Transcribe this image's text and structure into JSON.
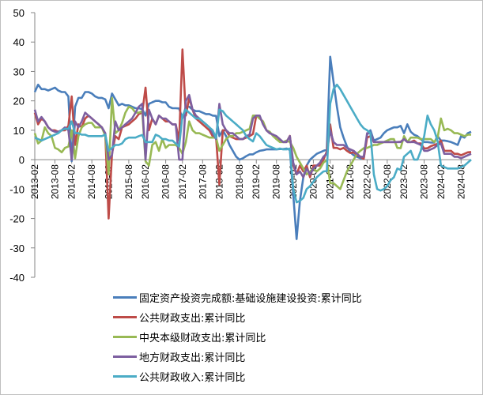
{
  "chart_data": {
    "type": "line",
    "title": "",
    "xlabel": "",
    "ylabel": "",
    "ylim": [
      -40,
      50
    ],
    "yticks": [
      50,
      40,
      30,
      20,
      10,
      0,
      -10,
      -20,
      -30,
      -40
    ],
    "grid": false,
    "legend_position": "bottom",
    "x_tick_labels": [
      "2013-02",
      "2013-08",
      "2014-02",
      "2014-08",
      "2015-02",
      "2015-08",
      "2016-02",
      "2016-08",
      "2017-02",
      "2017-08",
      "2018-02",
      "2018-08",
      "2019-02",
      "2019-08",
      "2020-02",
      "2020-08",
      "2021-02",
      "2021-08",
      "2022-02",
      "2022-08",
      "2023-02",
      "2023-08",
      "2024-02",
      "2024-08"
    ],
    "x": [
      "2013-02",
      "2013-03",
      "2013-04",
      "2013-05",
      "2013-06",
      "2013-07",
      "2013-08",
      "2013-09",
      "2013-10",
      "2013-11",
      "2013-12",
      "2014-02",
      "2014-03",
      "2014-04",
      "2014-05",
      "2014-06",
      "2014-07",
      "2014-08",
      "2014-09",
      "2014-10",
      "2014-11",
      "2014-12",
      "2015-02",
      "2015-03",
      "2015-04",
      "2015-05",
      "2015-06",
      "2015-07",
      "2015-08",
      "2015-09",
      "2015-10",
      "2015-11",
      "2015-12",
      "2016-02",
      "2016-03",
      "2016-04",
      "2016-05",
      "2016-06",
      "2016-07",
      "2016-08",
      "2016-09",
      "2016-10",
      "2016-11",
      "2016-12",
      "2017-02",
      "2017-03",
      "2017-04",
      "2017-05",
      "2017-06",
      "2017-07",
      "2017-08",
      "2017-09",
      "2017-10",
      "2017-11",
      "2017-12",
      "2018-02",
      "2018-03",
      "2018-04",
      "2018-05",
      "2018-06",
      "2018-07",
      "2018-08",
      "2018-09",
      "2018-10",
      "2018-11",
      "2018-12",
      "2019-02",
      "2019-03",
      "2019-04",
      "2019-05",
      "2019-06",
      "2019-07",
      "2019-08",
      "2019-09",
      "2019-10",
      "2019-11",
      "2019-12",
      "2020-02",
      "2020-03",
      "2020-04",
      "2020-05",
      "2020-06",
      "2020-07",
      "2020-08",
      "2020-09",
      "2020-10",
      "2020-11",
      "2020-12",
      "2021-02",
      "2021-03",
      "2021-04",
      "2021-05",
      "2021-06",
      "2021-07",
      "2021-08",
      "2021-09",
      "2021-10",
      "2021-11",
      "2021-12",
      "2022-02",
      "2022-03",
      "2022-04",
      "2022-05",
      "2022-06",
      "2022-07",
      "2022-08",
      "2022-09",
      "2022-10",
      "2022-11",
      "2022-12",
      "2023-02",
      "2023-03",
      "2023-04",
      "2023-05",
      "2023-06",
      "2023-07",
      "2023-08",
      "2023-09",
      "2023-10",
      "2023-11",
      "2023-12",
      "2024-02",
      "2024-03",
      "2024-04",
      "2024-05",
      "2024-06",
      "2024-07",
      "2024-08",
      "2024-09",
      "2024-10",
      "2024-11"
    ],
    "series": [
      {
        "name": "固定资产投资完成额:基础设施建设投资:累计同比",
        "color": "#4a7ebb",
        "values": [
          23,
          25.5,
          24,
          24,
          23.5,
          24,
          24.5,
          23.5,
          23,
          23,
          21.5,
          -0.5,
          18,
          21,
          21,
          23,
          23,
          22.5,
          21.5,
          21,
          21,
          20.5,
          17.5,
          22.5,
          20.5,
          18.5,
          19,
          18.5,
          18.5,
          18,
          17.5,
          17.5,
          17.2,
          15,
          19,
          19.5,
          20,
          20,
          19.5,
          19.5,
          18,
          17.5,
          17.5,
          17.4,
          14,
          18,
          18,
          17,
          16.5,
          16.5,
          16,
          15.5,
          15.5,
          15,
          14.9,
          8,
          10,
          8,
          5,
          3,
          1,
          0,
          0.5,
          1.2,
          1.8,
          1.8,
          2.5,
          3,
          3.2,
          3.5,
          3.5,
          3.5,
          3.5,
          3.6,
          3.6,
          3.8,
          3.3,
          -12,
          -27,
          -14,
          -6,
          -2,
          0,
          1,
          2,
          2.5,
          3,
          3.4,
          35,
          26.5,
          18,
          11,
          7.5,
          4.5,
          2.5,
          1.5,
          1,
          0.5,
          0.4,
          8.5,
          10,
          6.5,
          7,
          7.5,
          9,
          10,
          10.5,
          11,
          11,
          11.5,
          9,
          12,
          9.5,
          8.5,
          8,
          7,
          6,
          6,
          5.8,
          5.8,
          8,
          6.5,
          6.5,
          6.3,
          6,
          5.5,
          5,
          8,
          7.5,
          9,
          9.5
        ]
      },
      {
        "name": "公共财政支出:累计同比",
        "color": "#be4b48",
        "values": [
          16,
          12,
          14,
          13,
          11,
          10,
          10,
          9.5,
          10,
          10,
          11.5,
          21.5,
          5,
          12,
          11,
          14,
          15,
          14,
          13,
          12,
          11,
          8.5,
          -20,
          2,
          8,
          7,
          11,
          11.5,
          12,
          13,
          14,
          15.5,
          16,
          24.5,
          10,
          14,
          12,
          15,
          14,
          13,
          13,
          12,
          12,
          6.5,
          37.5,
          15,
          21,
          17,
          14,
          13,
          12,
          11,
          10,
          8,
          7.7,
          -8.5,
          10,
          10,
          8,
          7.5,
          7,
          7,
          7,
          7.5,
          8,
          8.7,
          15,
          14,
          13,
          10,
          9,
          8.5,
          7,
          6.5,
          6,
          6,
          8.1,
          -2,
          -5,
          -2,
          -4,
          -2,
          -6,
          -2,
          -2,
          -2,
          0,
          2.8,
          12,
          4,
          4,
          3.5,
          4,
          3,
          2.3,
          2.5,
          1.5,
          1,
          0.3,
          7.5,
          8,
          6,
          6,
          6,
          6,
          6,
          6,
          6,
          6,
          6.1,
          7,
          6,
          6,
          6.5,
          5.5,
          5.5,
          3.8,
          3.9,
          4.6,
          5,
          5.4,
          6.5,
          3,
          3,
          3,
          2,
          2,
          1.5,
          2,
          2.5,
          2.6
        ]
      },
      {
        "name": "中央本级财政支出:累计同比",
        "color": "#98b954",
        "values": [
          9,
          5.5,
          6.5,
          11,
          9,
          8,
          4,
          3.5,
          2.5,
          4,
          4.5,
          10,
          0.5,
          8,
          11,
          12,
          12.5,
          12.5,
          11,
          11,
          11,
          8,
          -5,
          21,
          9,
          10,
          12.5,
          16,
          18,
          17.5,
          16,
          16,
          16.5,
          -0.5,
          -2,
          5,
          6,
          3,
          7,
          4,
          5,
          5,
          5,
          4,
          2,
          6,
          13,
          10,
          9,
          9,
          8.5,
          8,
          7.5,
          7.5,
          7.5,
          3,
          5,
          7,
          8,
          8,
          9,
          9,
          9.5,
          10,
          10.5,
          15,
          15,
          14,
          13,
          10,
          9.5,
          8,
          7,
          6,
          6,
          6.5,
          6,
          4,
          1,
          -1,
          -3,
          -5,
          -4,
          -3,
          -4,
          -3,
          -1,
          -0.1,
          -8,
          -8,
          -9,
          -10,
          -7,
          -4,
          -2,
          0,
          2,
          3,
          3.9,
          4,
          4.5,
          5,
          5,
          5.5,
          6,
          6.5,
          7,
          7,
          4,
          3.9,
          8,
          6,
          7.5,
          7.5,
          7.5,
          7,
          7,
          7,
          7,
          6,
          7.4,
          14,
          10,
          10.5,
          10,
          9,
          9,
          8.5,
          8,
          8.5,
          8.5
        ]
      },
      {
        "name": "地方财政支出:累计同比",
        "color": "#7d5fa0",
        "values": [
          17,
          13,
          14.5,
          13,
          11,
          10,
          9.5,
          9.5,
          10,
          11,
          10,
          0,
          13,
          11,
          13,
          16,
          15,
          14,
          13,
          12,
          11,
          9,
          0,
          1.5,
          13,
          10,
          11,
          12,
          13,
          14,
          16,
          18,
          19,
          0,
          17,
          14,
          12,
          15,
          14,
          14,
          13,
          12,
          12,
          0,
          0,
          20,
          22,
          17,
          15,
          14,
          13,
          12,
          11,
          9,
          7,
          19,
          12,
          10,
          9,
          9,
          8,
          7,
          7,
          8,
          8.5,
          14,
          15,
          15,
          12,
          10,
          9,
          8.5,
          8,
          7,
          6,
          6,
          8,
          -1,
          -5,
          -4,
          -6,
          -3,
          -5,
          -3,
          -2,
          -1,
          1,
          2,
          10,
          6,
          5,
          5,
          5,
          4,
          3.5,
          3,
          2,
          1,
          1,
          9,
          9,
          6,
          6,
          6,
          6,
          6,
          6,
          6,
          6,
          6,
          7,
          6,
          6,
          6,
          5.5,
          5,
          3,
          3,
          3.5,
          4,
          5,
          5.5,
          2,
          2,
          2,
          1,
          1,
          0.5,
          1,
          1.5,
          2
        ]
      },
      {
        "name": "公共财政收入:累计同比",
        "color": "#4bacc6",
        "values": [
          7.5,
          7,
          6.5,
          7,
          7.5,
          8,
          8.5,
          9,
          10,
          10.5,
          10.5,
          13,
          9,
          9,
          8.5,
          8.5,
          8,
          8,
          8,
          8,
          8,
          8.5,
          3,
          4,
          5,
          5,
          5.5,
          7,
          7.5,
          7.5,
          7.5,
          8,
          8.4,
          6,
          6,
          6,
          8.5,
          8,
          7,
          7,
          6.5,
          6.5,
          5.5,
          4.5,
          15,
          17,
          16,
          15,
          14,
          14,
          13,
          12,
          11,
          10,
          7.4,
          17,
          16.5,
          15,
          14,
          13,
          12,
          11,
          10,
          8,
          7,
          6.2,
          9,
          8,
          6.5,
          5,
          4.5,
          4,
          3.5,
          3.8,
          3.5,
          3.5,
          3.8,
          -10,
          -14.5,
          -14,
          -13,
          -10,
          -9,
          -7.5,
          -6,
          -5,
          -4,
          -3.9,
          19,
          24,
          25.5,
          24,
          22,
          20,
          18,
          16,
          14,
          12,
          10.7,
          10,
          9,
          -5,
          -10,
          -10.5,
          -10,
          -9,
          -7,
          -6,
          -3,
          -3.5,
          1,
          2,
          3,
          0,
          0,
          3,
          8,
          15,
          12,
          10,
          6.4,
          -2,
          -2.5,
          -3,
          -3,
          -3,
          -3,
          -2.5,
          -2,
          -1,
          0
        ]
      }
    ]
  },
  "legend": {
    "items": [
      {
        "label": "固定资产投资完成额:基础设施建设投资:累计同比",
        "color": "#4a7ebb"
      },
      {
        "label": "公共财政支出:累计同比",
        "color": "#be4b48"
      },
      {
        "label": "中央本级财政支出:累计同比",
        "color": "#98b954"
      },
      {
        "label": "地方财政支出:累计同比",
        "color": "#7d5fa0"
      },
      {
        "label": "公共财政收入:累计同比",
        "color": "#4bacc6"
      }
    ]
  }
}
